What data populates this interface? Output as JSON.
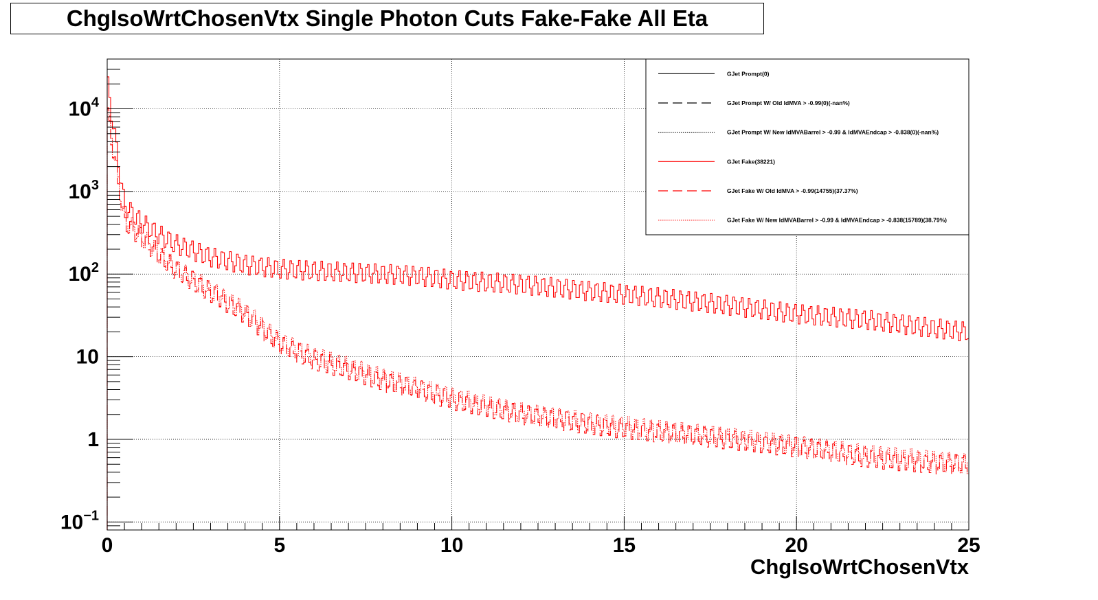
{
  "title": "ChgIsoWrtChosenVtx Single Photon Cuts Fake-Fake All Eta",
  "chart_data": {
    "type": "line",
    "title": "ChgIsoWrtChosenVtx Single Photon Cuts Fake-Fake All Eta",
    "xlabel": "ChgIsoWrtChosenVtx",
    "ylabel": "",
    "xlim": [
      0,
      25
    ],
    "ylim": [
      0.08,
      40000
    ],
    "y_scale": "log",
    "grid": true,
    "legend_position": "top-right",
    "x_ticks": [
      {
        "v": 0,
        "label": "0"
      },
      {
        "v": 5,
        "label": "5"
      },
      {
        "v": 10,
        "label": "10"
      },
      {
        "v": 15,
        "label": "15"
      },
      {
        "v": 20,
        "label": "20"
      },
      {
        "v": 25,
        "label": "25"
      }
    ],
    "y_ticks": [
      {
        "v": 0.1,
        "base": "10",
        "exp": "−1"
      },
      {
        "v": 1,
        "base": "1",
        "exp": ""
      },
      {
        "v": 10,
        "base": "10",
        "exp": ""
      },
      {
        "v": 100,
        "base": "10",
        "exp": "2"
      },
      {
        "v": 1000,
        "base": "10",
        "exp": "3"
      },
      {
        "v": 10000,
        "base": "10",
        "exp": "4"
      }
    ],
    "series": [
      {
        "name": "GJet Prompt(0)",
        "color": "#000000",
        "dash": "solid",
        "values": []
      },
      {
        "name": "GJet Prompt W/ Old IdMVA > -0.99(0)(-nan%)",
        "color": "#000000",
        "dash": "long-dash",
        "values": []
      },
      {
        "name": "GJet Prompt W/ New IdMVABarrel > -0.99 & IdMVAEndcap > -0.838(0)(-nan%)",
        "color": "#000000",
        "dash": "dotted",
        "values": []
      },
      {
        "name": "GJet Fake(38221)",
        "color": "#ff0000",
        "dash": "solid",
        "x": [
          0,
          0.5,
          1,
          1.5,
          2,
          3,
          4,
          5,
          6,
          7,
          8,
          9,
          10,
          12,
          14,
          16,
          18,
          20,
          22,
          24,
          25
        ],
        "values": [
          22000,
          680,
          420,
          300,
          230,
          160,
          130,
          115,
          110,
          105,
          100,
          95,
          85,
          75,
          62,
          52,
          42,
          33,
          28,
          22,
          20
        ]
      },
      {
        "name": "GJet Fake W/ Old IdMVA > -0.99(14755)(37.37%)",
        "color": "#ff0000",
        "dash": "long-dash",
        "x": [
          0,
          0.5,
          1,
          1.5,
          2,
          3,
          4,
          5,
          6,
          7,
          8,
          9,
          10,
          12,
          14,
          16,
          18,
          20,
          22,
          24,
          25
        ],
        "values": [
          9500,
          430,
          280,
          170,
          110,
          60,
          33,
          14,
          9,
          7,
          5,
          4,
          3,
          2,
          1.5,
          1.2,
          1,
          0.8,
          0.6,
          0.5,
          0.5
        ]
      },
      {
        "name": "GJet Fake W/ New IdMVABarrel > -0.99 & IdMVAEndcap > -0.838(15789)(38.79%)",
        "color": "#ff0000",
        "dash": "dotted",
        "x": [
          0,
          0.5,
          1,
          1.5,
          2,
          3,
          4,
          5,
          6,
          7,
          8,
          9,
          10,
          12,
          14,
          16,
          18,
          20,
          22,
          24,
          25
        ],
        "values": [
          10000,
          450,
          290,
          175,
          115,
          63,
          35,
          15,
          10,
          7.5,
          5.5,
          4.2,
          3.2,
          2.1,
          1.6,
          1.3,
          1.05,
          0.85,
          0.65,
          0.55,
          0.5
        ]
      }
    ]
  }
}
